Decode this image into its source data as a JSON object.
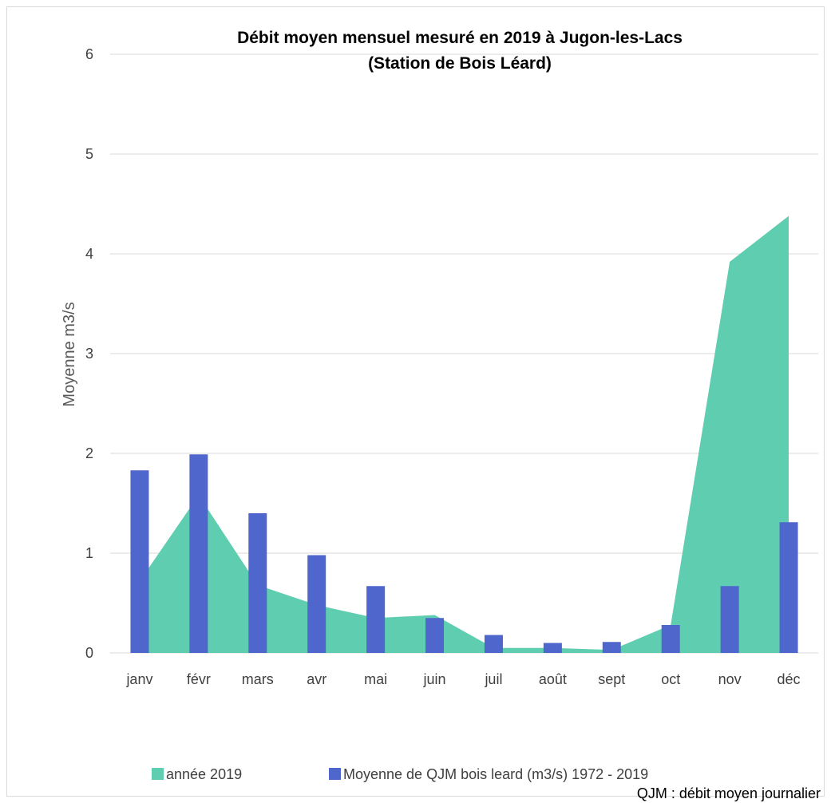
{
  "chart_data": {
    "type": "bar",
    "title_line1": "Débit moyen mensuel mesuré en 2019 à Jugon-les-Lacs",
    "title_line2": "(Station de Bois Léard)",
    "ylabel": "Moyenne m3/s",
    "xlabel": "",
    "ylim": [
      0,
      6
    ],
    "yticks": [
      "0",
      "1",
      "2",
      "3",
      "4",
      "5",
      "6"
    ],
    "grid": true,
    "legend_position": "bottom",
    "categories": [
      "janv",
      "févr",
      "mars",
      "avr",
      "mai",
      "juin",
      "juil",
      "août",
      "sept",
      "oct",
      "nov",
      "déc"
    ],
    "series": [
      {
        "name": "année 2019",
        "type": "area",
        "color": "#5ecdb0",
        "values": [
          0.72,
          1.58,
          0.68,
          0.48,
          0.35,
          0.38,
          0.05,
          0.05,
          0.03,
          0.28,
          3.92,
          4.38
        ]
      },
      {
        "name": "Moyenne de QJM bois leard (m3/s) 1972 - 2019",
        "type": "bar",
        "color": "#4f66cc",
        "values": [
          1.83,
          1.99,
          1.4,
          0.98,
          0.67,
          0.35,
          0.18,
          0.1,
          0.11,
          0.28,
          0.67,
          1.31
        ]
      }
    ],
    "annotation": "QJM : débit moyen journalier"
  }
}
